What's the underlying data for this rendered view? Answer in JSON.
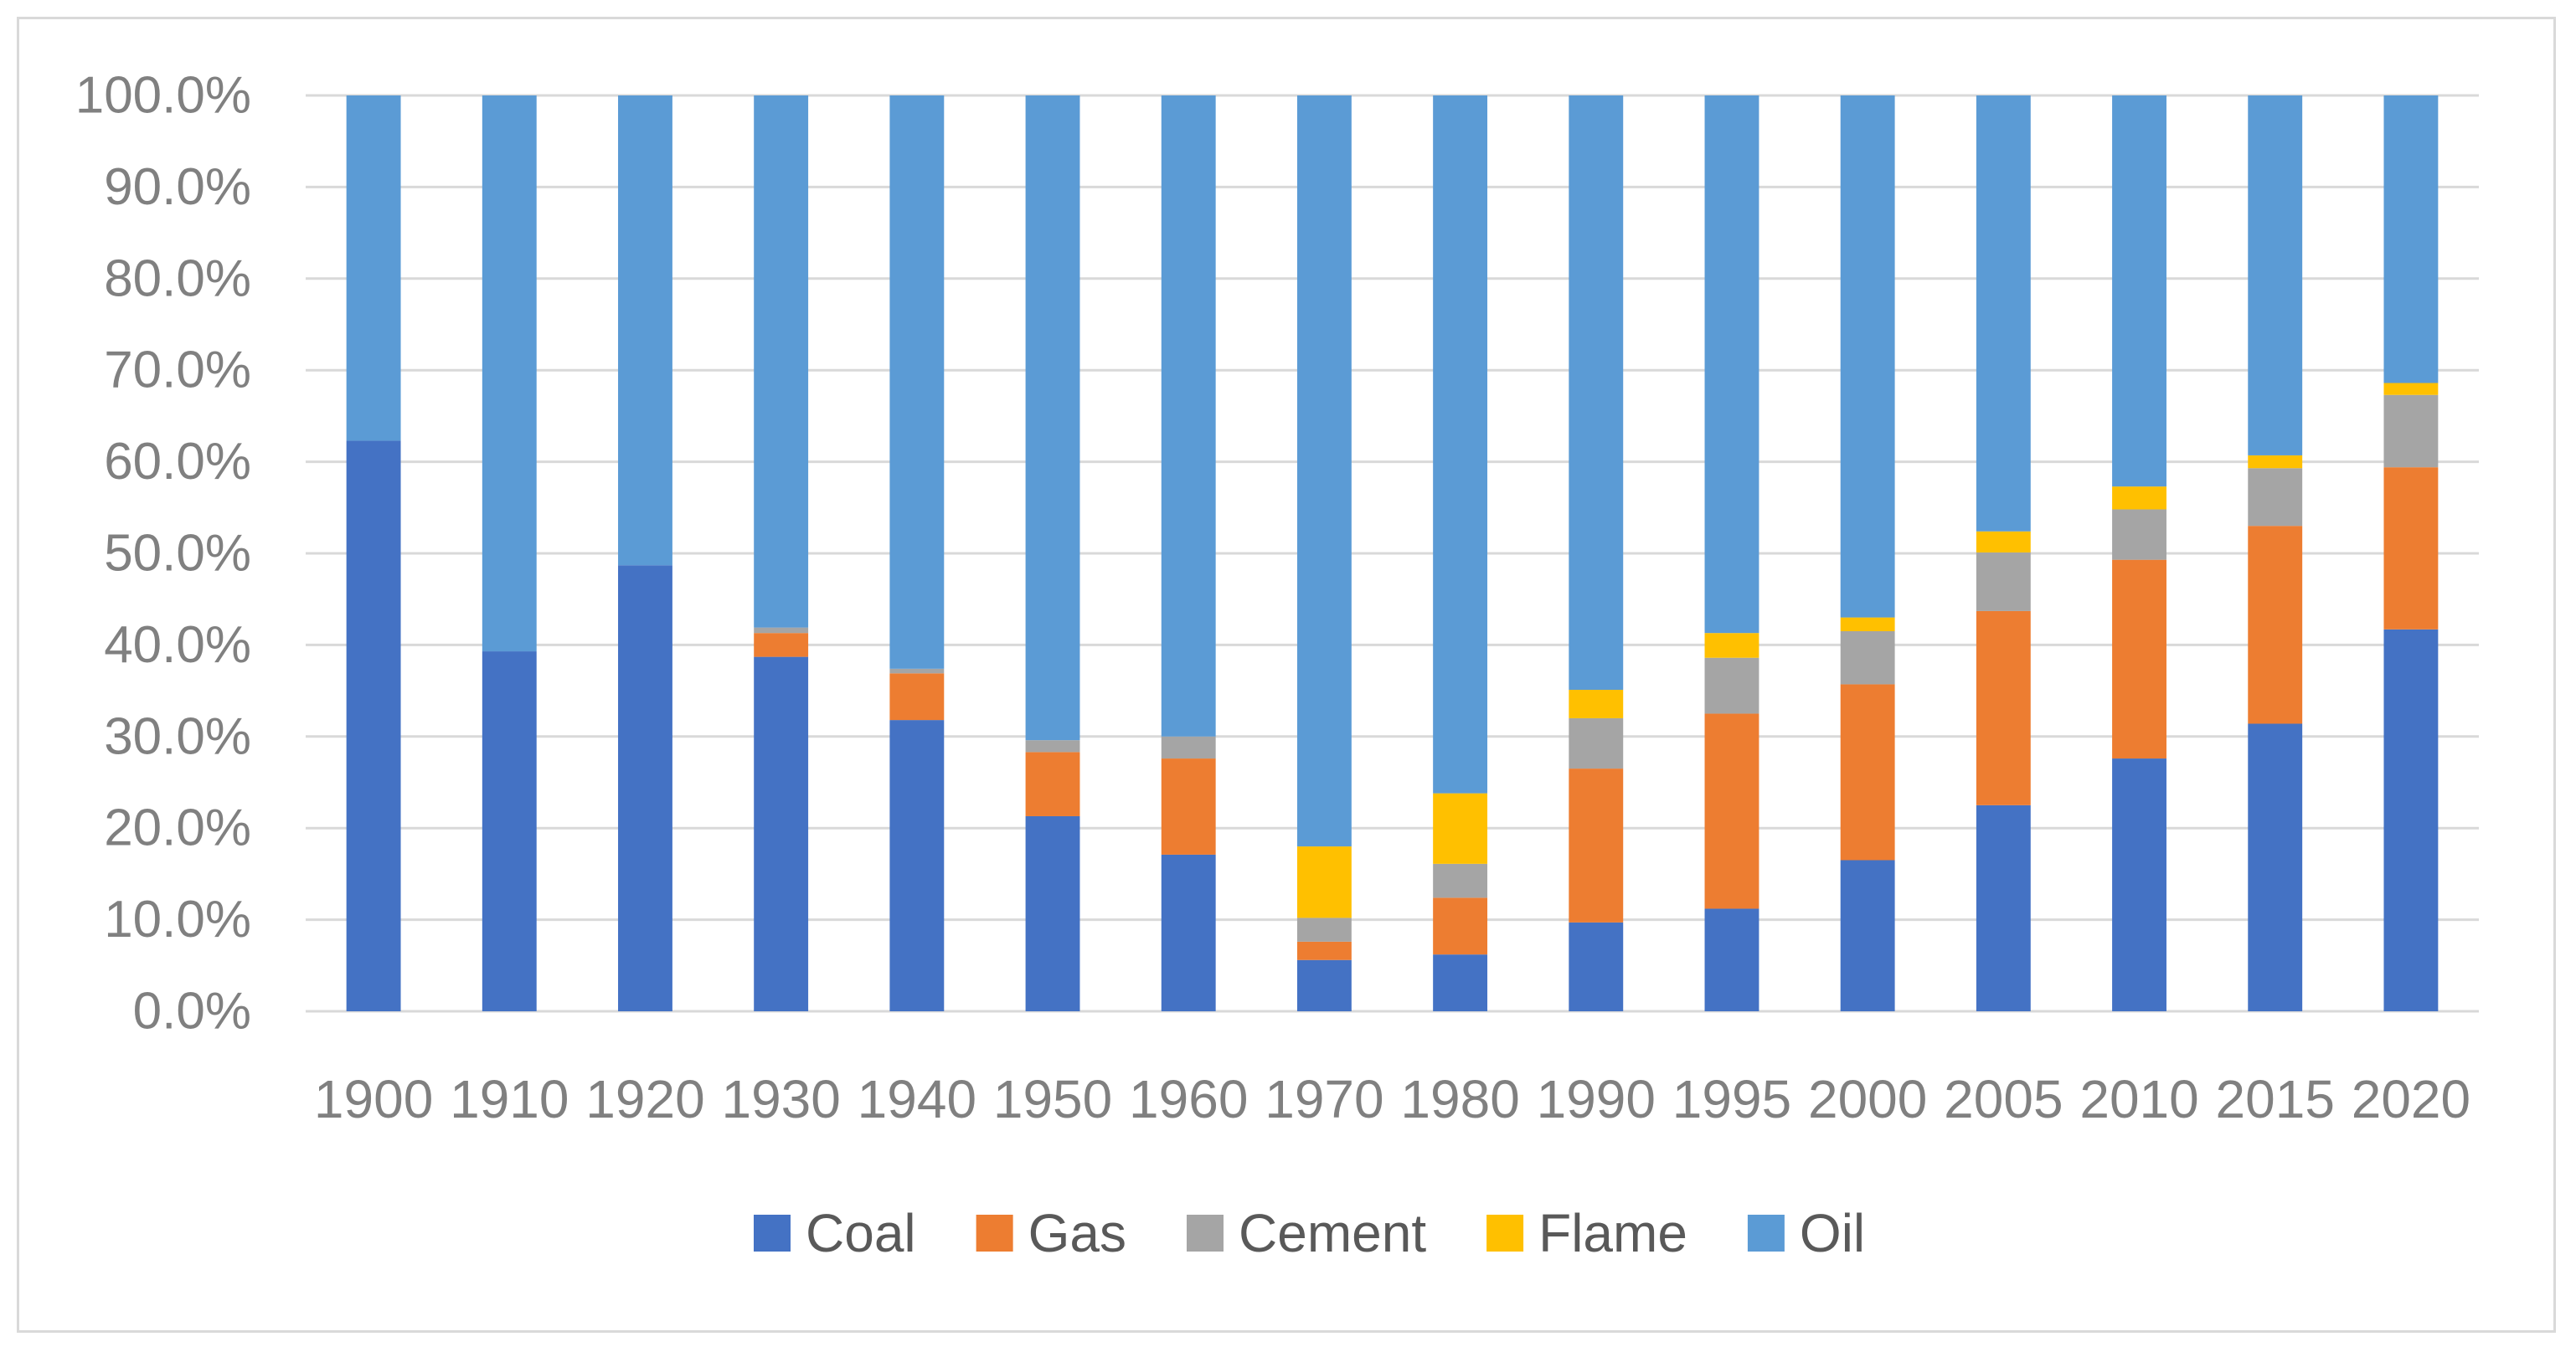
{
  "chart_data": {
    "type": "bar",
    "stacked": true,
    "normalized": true,
    "title": "",
    "xlabel": "",
    "ylabel": "",
    "ylim": [
      0,
      100
    ],
    "y_ticks": [
      "0.0%",
      "10.0%",
      "20.0%",
      "30.0%",
      "40.0%",
      "50.0%",
      "60.0%",
      "70.0%",
      "80.0%",
      "90.0%",
      "100.0%"
    ],
    "grid": true,
    "legend_position": "bottom",
    "categories": [
      "1900",
      "1910",
      "1920",
      "1930",
      "1940",
      "1950",
      "1960",
      "1970",
      "1980",
      "1990",
      "1995",
      "2000",
      "2005",
      "2010",
      "2015",
      "2020"
    ],
    "series": [
      {
        "name": "Coal",
        "color": "#4472c4",
        "values": [
          62.3,
          39.3,
          48.7,
          38.7,
          31.8,
          21.3,
          17.1,
          5.6,
          6.2,
          9.7,
          11.2,
          16.5,
          22.5,
          27.6,
          31.4,
          41.7
        ]
      },
      {
        "name": "Gas",
        "color": "#ed7d31",
        "values": [
          0.0,
          0.0,
          0.0,
          2.6,
          5.1,
          7.0,
          10.5,
          2.0,
          6.2,
          16.8,
          21.3,
          19.2,
          21.2,
          21.7,
          21.6,
          17.7
        ]
      },
      {
        "name": "Cement",
        "color": "#a5a5a5",
        "values": [
          0.0,
          0.0,
          0.0,
          0.6,
          0.5,
          1.3,
          2.4,
          2.6,
          3.7,
          5.5,
          6.1,
          5.8,
          6.4,
          5.5,
          6.3,
          7.9
        ]
      },
      {
        "name": "Flame",
        "color": "#ffc000",
        "values": [
          0.0,
          0.0,
          0.0,
          0.0,
          0.0,
          0.0,
          0.0,
          7.8,
          7.7,
          3.1,
          2.7,
          1.5,
          2.3,
          2.5,
          1.4,
          1.3
        ]
      },
      {
        "name": "Oil",
        "color": "#5b9bd5",
        "values": [
          37.7,
          60.7,
          51.3,
          58.1,
          62.6,
          70.4,
          70.0,
          82.0,
          76.2,
          64.9,
          58.7,
          57.0,
          47.6,
          42.7,
          39.3,
          31.4
        ]
      }
    ]
  }
}
